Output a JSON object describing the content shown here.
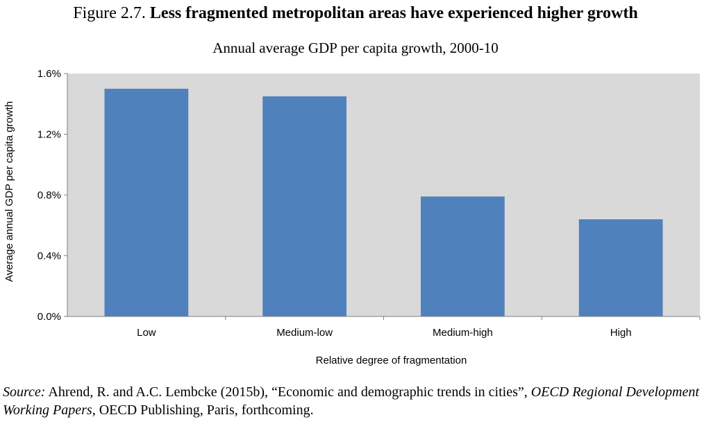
{
  "figure": {
    "number": "Figure 2.7.",
    "title": "Less fragmented metropolitan areas have experienced higher growth"
  },
  "source": {
    "label": "Source:",
    "text_a": "Ahrend, R. and A.C. Lembcke (2015b), “Economic and demographic trends in cities”,",
    "series": "OECD Regional Development Working Papers",
    "text_b": ", OECD Publishing, Paris, forthcoming."
  },
  "colors": {
    "bar": "#4F81BD",
    "plot_background": "#D9D9D9",
    "axis": "#808080"
  },
  "chart_data": {
    "type": "bar",
    "title": "Annual average GDP per capita growth, 2000-10",
    "xlabel": "Relative degree of fragmentation",
    "ylabel": "Average annual GDP per capita growth",
    "categories": [
      "Low",
      "Medium-low",
      "Medium-high",
      "High"
    ],
    "values": [
      1.5,
      1.45,
      0.79,
      0.64
    ],
    "unit": "%",
    "ylim": [
      0,
      1.6
    ],
    "yticks": [
      "0.0%",
      "0.4%",
      "0.8%",
      "1.2%",
      "1.6%"
    ],
    "ytick_values": [
      0,
      0.4,
      0.8,
      1.2,
      1.6
    ],
    "grid": false,
    "legend": "none"
  }
}
